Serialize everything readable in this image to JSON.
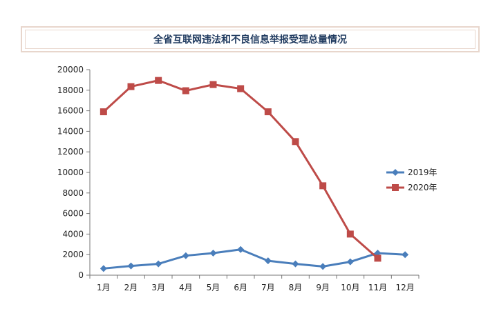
{
  "chart_data": {
    "type": "line",
    "title": "全省互联网违法和不良信息举报受理总量情况",
    "categories": [
      "1月",
      "2月",
      "3月",
      "4月",
      "5月",
      "6月",
      "7月",
      "8月",
      "9月",
      "10月",
      "11月",
      "12月"
    ],
    "ylim": [
      0,
      20000
    ],
    "yticks": [
      0,
      2000,
      4000,
      6000,
      8000,
      10000,
      12000,
      14000,
      16000,
      18000,
      20000
    ],
    "legend_position": "right",
    "series": [
      {
        "name": "2019年",
        "color": "#4a7ebb",
        "marker": "diamond",
        "values": [
          650,
          900,
          1100,
          1900,
          2150,
          2500,
          1400,
          1100,
          850,
          1300,
          2150,
          2000
        ]
      },
      {
        "name": "2020年",
        "color": "#be4b48",
        "marker": "square",
        "values": [
          15900,
          18350,
          18950,
          17950,
          18550,
          18150,
          15900,
          13000,
          8700,
          4000,
          1650,
          null
        ]
      }
    ]
  }
}
